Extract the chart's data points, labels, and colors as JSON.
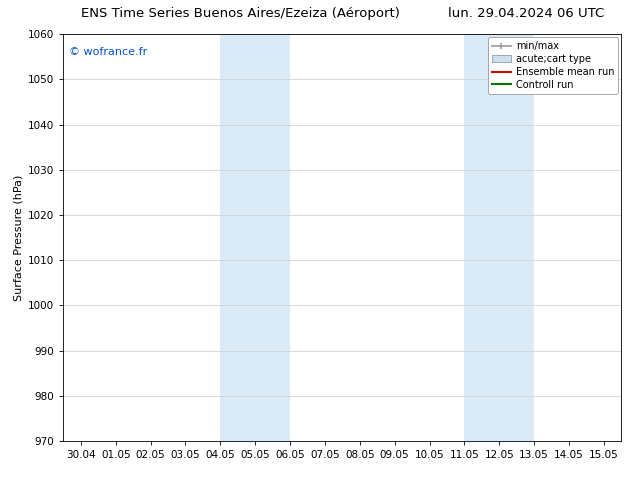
{
  "title_left": "ENS Time Series Buenos Aires/Ezeiza (Aéroport)",
  "title_right": "lun. 29.04.2024 06 UTC",
  "ylabel": "Surface Pressure (hPa)",
  "watermark": "© wofrance.fr",
  "watermark_color": "#0055cc",
  "ylim": [
    970,
    1060
  ],
  "yticks": [
    970,
    980,
    990,
    1000,
    1010,
    1020,
    1030,
    1040,
    1050,
    1060
  ],
  "xtick_labels": [
    "30.04",
    "01.05",
    "02.05",
    "03.05",
    "04.05",
    "05.05",
    "06.05",
    "07.05",
    "08.05",
    "09.05",
    "10.05",
    "11.05",
    "12.05",
    "13.05",
    "14.05",
    "15.05"
  ],
  "shaded_regions": [
    {
      "xstart": 4.0,
      "xend": 6.0,
      "color": "#daeaf7"
    },
    {
      "xstart": 11.0,
      "xend": 13.0,
      "color": "#daeaf7"
    }
  ],
  "legend_items": [
    {
      "label": "min/max",
      "color": "#999999",
      "type": "errorbar"
    },
    {
      "label": "acute;cart type",
      "color": "#cce0f0",
      "type": "bar"
    },
    {
      "label": "Ensemble mean run",
      "color": "#cc0000",
      "type": "line"
    },
    {
      "label": "Controll run",
      "color": "#007700",
      "type": "line"
    }
  ],
  "background_color": "#ffffff",
  "grid_color": "#cccccc",
  "title_fontsize": 9.5,
  "tick_fontsize": 7.5,
  "ylabel_fontsize": 8,
  "legend_fontsize": 7,
  "watermark_fontsize": 8
}
